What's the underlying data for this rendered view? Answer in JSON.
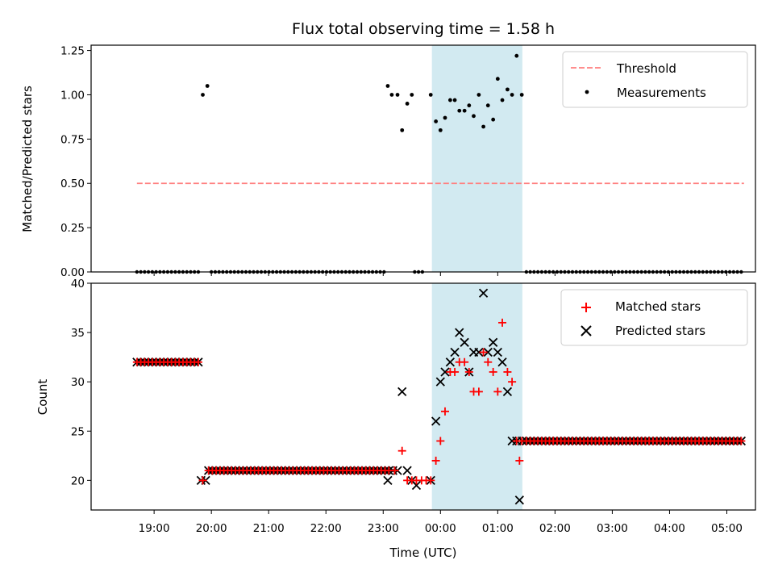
{
  "chart_data": {
    "title": "Flux total observing time = 1.58 h",
    "xlabel": "Time (UTC)",
    "x_unit": "hours",
    "xlim": [
      17.9,
      29.5
    ],
    "x_ticks": [
      {
        "value": 19,
        "label": "19:00"
      },
      {
        "value": 20,
        "label": "20:00"
      },
      {
        "value": 21,
        "label": "21:00"
      },
      {
        "value": 22,
        "label": "22:00"
      },
      {
        "value": 23,
        "label": "23:00"
      },
      {
        "value": 24,
        "label": "00:00"
      },
      {
        "value": 25,
        "label": "01:00"
      },
      {
        "value": 26,
        "label": "02:00"
      },
      {
        "value": 27,
        "label": "03:00"
      },
      {
        "value": 28,
        "label": "04:00"
      },
      {
        "value": 29,
        "label": "05:00"
      }
    ],
    "highlight_span": [
      23.85,
      25.43
    ],
    "highlight_color": "#add8e6",
    "panels": [
      {
        "type": "scatter",
        "ylabel": "Matched/Predicted stars",
        "ylim": [
          0,
          1.28
        ],
        "y_ticks": [
          0.0,
          0.25,
          0.5,
          0.75,
          1.0,
          1.25
        ],
        "y_tick_labels": [
          "0.00",
          "0.25",
          "0.50",
          "0.75",
          "1.00",
          "1.25"
        ],
        "legend": [
          {
            "label": "Threshold",
            "kind": "dashed-line",
            "color": "#ff7f7f"
          },
          {
            "label": "Measurements",
            "kind": "dot",
            "color": "#000000"
          }
        ],
        "threshold": {
          "name": "Threshold",
          "value": 0.5,
          "x_range": [
            18.7,
            29.3
          ],
          "color": "#ff7f7f"
        },
        "measurements": {
          "name": "Measurements",
          "color": "#000000",
          "zero_runs": [
            {
              "start": 18.7,
              "end": 19.8,
              "step": 0.067
            },
            {
              "start": 20.0,
              "end": 23.05,
              "step": 0.067
            },
            {
              "start": 23.55,
              "end": 23.75,
              "step": 0.067
            },
            {
              "start": 25.5,
              "end": 29.3,
              "step": 0.067
            }
          ],
          "points": [
            {
              "x": 19.85,
              "y": 1.0
            },
            {
              "x": 19.93,
              "y": 1.05
            },
            {
              "x": 23.08,
              "y": 1.05
            },
            {
              "x": 23.15,
              "y": 1.0
            },
            {
              "x": 23.25,
              "y": 1.0
            },
            {
              "x": 23.33,
              "y": 0.8
            },
            {
              "x": 23.42,
              "y": 0.95
            },
            {
              "x": 23.5,
              "y": 1.0
            },
            {
              "x": 23.83,
              "y": 1.0
            },
            {
              "x": 23.92,
              "y": 0.85
            },
            {
              "x": 24.0,
              "y": 0.8
            },
            {
              "x": 24.08,
              "y": 0.87
            },
            {
              "x": 24.17,
              "y": 0.97
            },
            {
              "x": 24.25,
              "y": 0.97
            },
            {
              "x": 24.33,
              "y": 0.91
            },
            {
              "x": 24.42,
              "y": 0.91
            },
            {
              "x": 24.5,
              "y": 0.94
            },
            {
              "x": 24.58,
              "y": 0.88
            },
            {
              "x": 24.67,
              "y": 1.0
            },
            {
              "x": 24.75,
              "y": 0.82
            },
            {
              "x": 24.83,
              "y": 0.94
            },
            {
              "x": 24.92,
              "y": 0.86
            },
            {
              "x": 25.0,
              "y": 1.09
            },
            {
              "x": 25.08,
              "y": 0.97
            },
            {
              "x": 25.17,
              "y": 1.03
            },
            {
              "x": 25.25,
              "y": 1.0
            },
            {
              "x": 25.33,
              "y": 1.22
            },
            {
              "x": 25.42,
              "y": 1.0
            }
          ]
        }
      },
      {
        "type": "scatter",
        "ylabel": "Count",
        "ylim": [
          17,
          40
        ],
        "y_ticks": [
          20,
          25,
          30,
          35,
          40
        ],
        "y_tick_labels": [
          "20",
          "25",
          "30",
          "35",
          "40"
        ],
        "legend": [
          {
            "label": "Matched stars",
            "kind": "plus",
            "color": "#ff0000"
          },
          {
            "label": "Predicted stars",
            "kind": "cross",
            "color": "#000000"
          }
        ],
        "matched": {
          "name": "Matched stars",
          "color": "#ff0000",
          "runs": [
            {
              "start": 18.7,
              "end": 19.8,
              "step": 0.067,
              "y": 32
            },
            {
              "start": 19.95,
              "end": 23.1,
              "step": 0.067,
              "y": 21
            },
            {
              "start": 25.5,
              "end": 29.3,
              "step": 0.067,
              "y": 24
            }
          ],
          "points": [
            {
              "x": 19.85,
              "y": 20
            },
            {
              "x": 23.2,
              "y": 21
            },
            {
              "x": 23.33,
              "y": 23
            },
            {
              "x": 23.42,
              "y": 20
            },
            {
              "x": 23.5,
              "y": 20
            },
            {
              "x": 23.58,
              "y": 20
            },
            {
              "x": 23.67,
              "y": 20
            },
            {
              "x": 23.75,
              "y": 20
            },
            {
              "x": 23.83,
              "y": 20
            },
            {
              "x": 23.92,
              "y": 22
            },
            {
              "x": 24.0,
              "y": 24
            },
            {
              "x": 24.08,
              "y": 27
            },
            {
              "x": 24.17,
              "y": 31
            },
            {
              "x": 24.25,
              "y": 31
            },
            {
              "x": 24.33,
              "y": 32
            },
            {
              "x": 24.42,
              "y": 32
            },
            {
              "x": 24.5,
              "y": 31
            },
            {
              "x": 24.58,
              "y": 29
            },
            {
              "x": 24.67,
              "y": 29
            },
            {
              "x": 24.75,
              "y": 33
            },
            {
              "x": 24.83,
              "y": 32
            },
            {
              "x": 24.92,
              "y": 31
            },
            {
              "x": 25.0,
              "y": 29
            },
            {
              "x": 25.08,
              "y": 36
            },
            {
              "x": 25.17,
              "y": 31
            },
            {
              "x": 25.25,
              "y": 30
            },
            {
              "x": 25.33,
              "y": 24
            },
            {
              "x": 25.38,
              "y": 22
            },
            {
              "x": 25.42,
              "y": 24
            }
          ]
        },
        "predicted": {
          "name": "Predicted stars",
          "color": "#000000",
          "points": [
            {
              "x": 19.82,
              "y": 20
            },
            {
              "x": 19.9,
              "y": 20
            },
            {
              "x": 23.08,
              "y": 20
            },
            {
              "x": 23.17,
              "y": 21
            },
            {
              "x": 23.25,
              "y": 21
            },
            {
              "x": 23.33,
              "y": 29
            },
            {
              "x": 23.42,
              "y": 21
            },
            {
              "x": 23.5,
              "y": 20
            },
            {
              "x": 23.58,
              "y": 19.5
            },
            {
              "x": 23.83,
              "y": 20
            },
            {
              "x": 23.92,
              "y": 26
            },
            {
              "x": 24.0,
              "y": 30
            },
            {
              "x": 24.08,
              "y": 31
            },
            {
              "x": 24.17,
              "y": 32
            },
            {
              "x": 24.25,
              "y": 33
            },
            {
              "x": 24.33,
              "y": 35
            },
            {
              "x": 24.42,
              "y": 34
            },
            {
              "x": 24.5,
              "y": 31
            },
            {
              "x": 24.58,
              "y": 33
            },
            {
              "x": 24.67,
              "y": 33
            },
            {
              "x": 24.75,
              "y": 39
            },
            {
              "x": 24.83,
              "y": 33
            },
            {
              "x": 24.92,
              "y": 34
            },
            {
              "x": 25.0,
              "y": 33
            },
            {
              "x": 25.08,
              "y": 32
            },
            {
              "x": 25.17,
              "y": 29
            },
            {
              "x": 25.25,
              "y": 24
            },
            {
              "x": 25.33,
              "y": 24
            },
            {
              "x": 25.38,
              "y": 18
            },
            {
              "x": 25.43,
              "y": 24
            }
          ]
        }
      }
    ]
  }
}
